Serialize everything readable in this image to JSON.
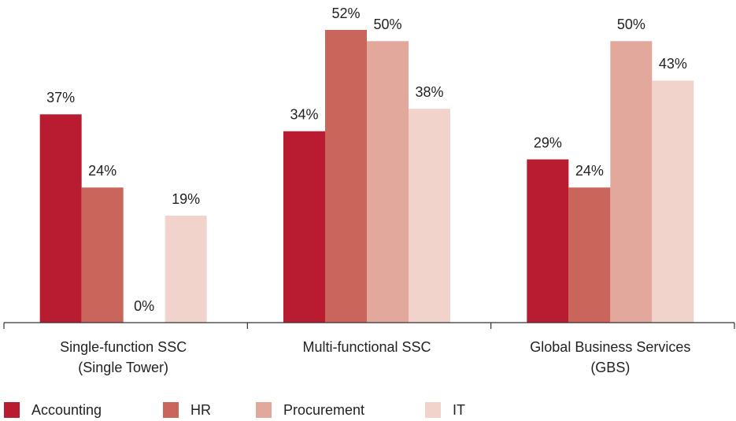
{
  "chart_data": {
    "type": "bar",
    "categories": [
      "Single-function SSC\n(Single Tower)",
      "Multi-functional SSC",
      "Global Business Services\n(GBS)"
    ],
    "series": [
      {
        "name": "Accounting",
        "color": "#b91c30",
        "values": [
          37,
          34,
          29
        ],
        "value_labels": [
          "37%",
          "34%",
          "29%"
        ]
      },
      {
        "name": "HR",
        "color": "#c9655a",
        "values": [
          24,
          52,
          24
        ],
        "value_labels": [
          "24%",
          "52%",
          "24%"
        ]
      },
      {
        "name": "Procurement",
        "color": "#e2a89c",
        "values": [
          0,
          50,
          50
        ],
        "value_labels": [
          "0%",
          "50%",
          "50%"
        ]
      },
      {
        "name": "IT",
        "color": "#f2d3cc",
        "values": [
          19,
          38,
          43
        ],
        "value_labels": [
          "19%",
          "38%",
          "43%"
        ]
      }
    ]
  }
}
